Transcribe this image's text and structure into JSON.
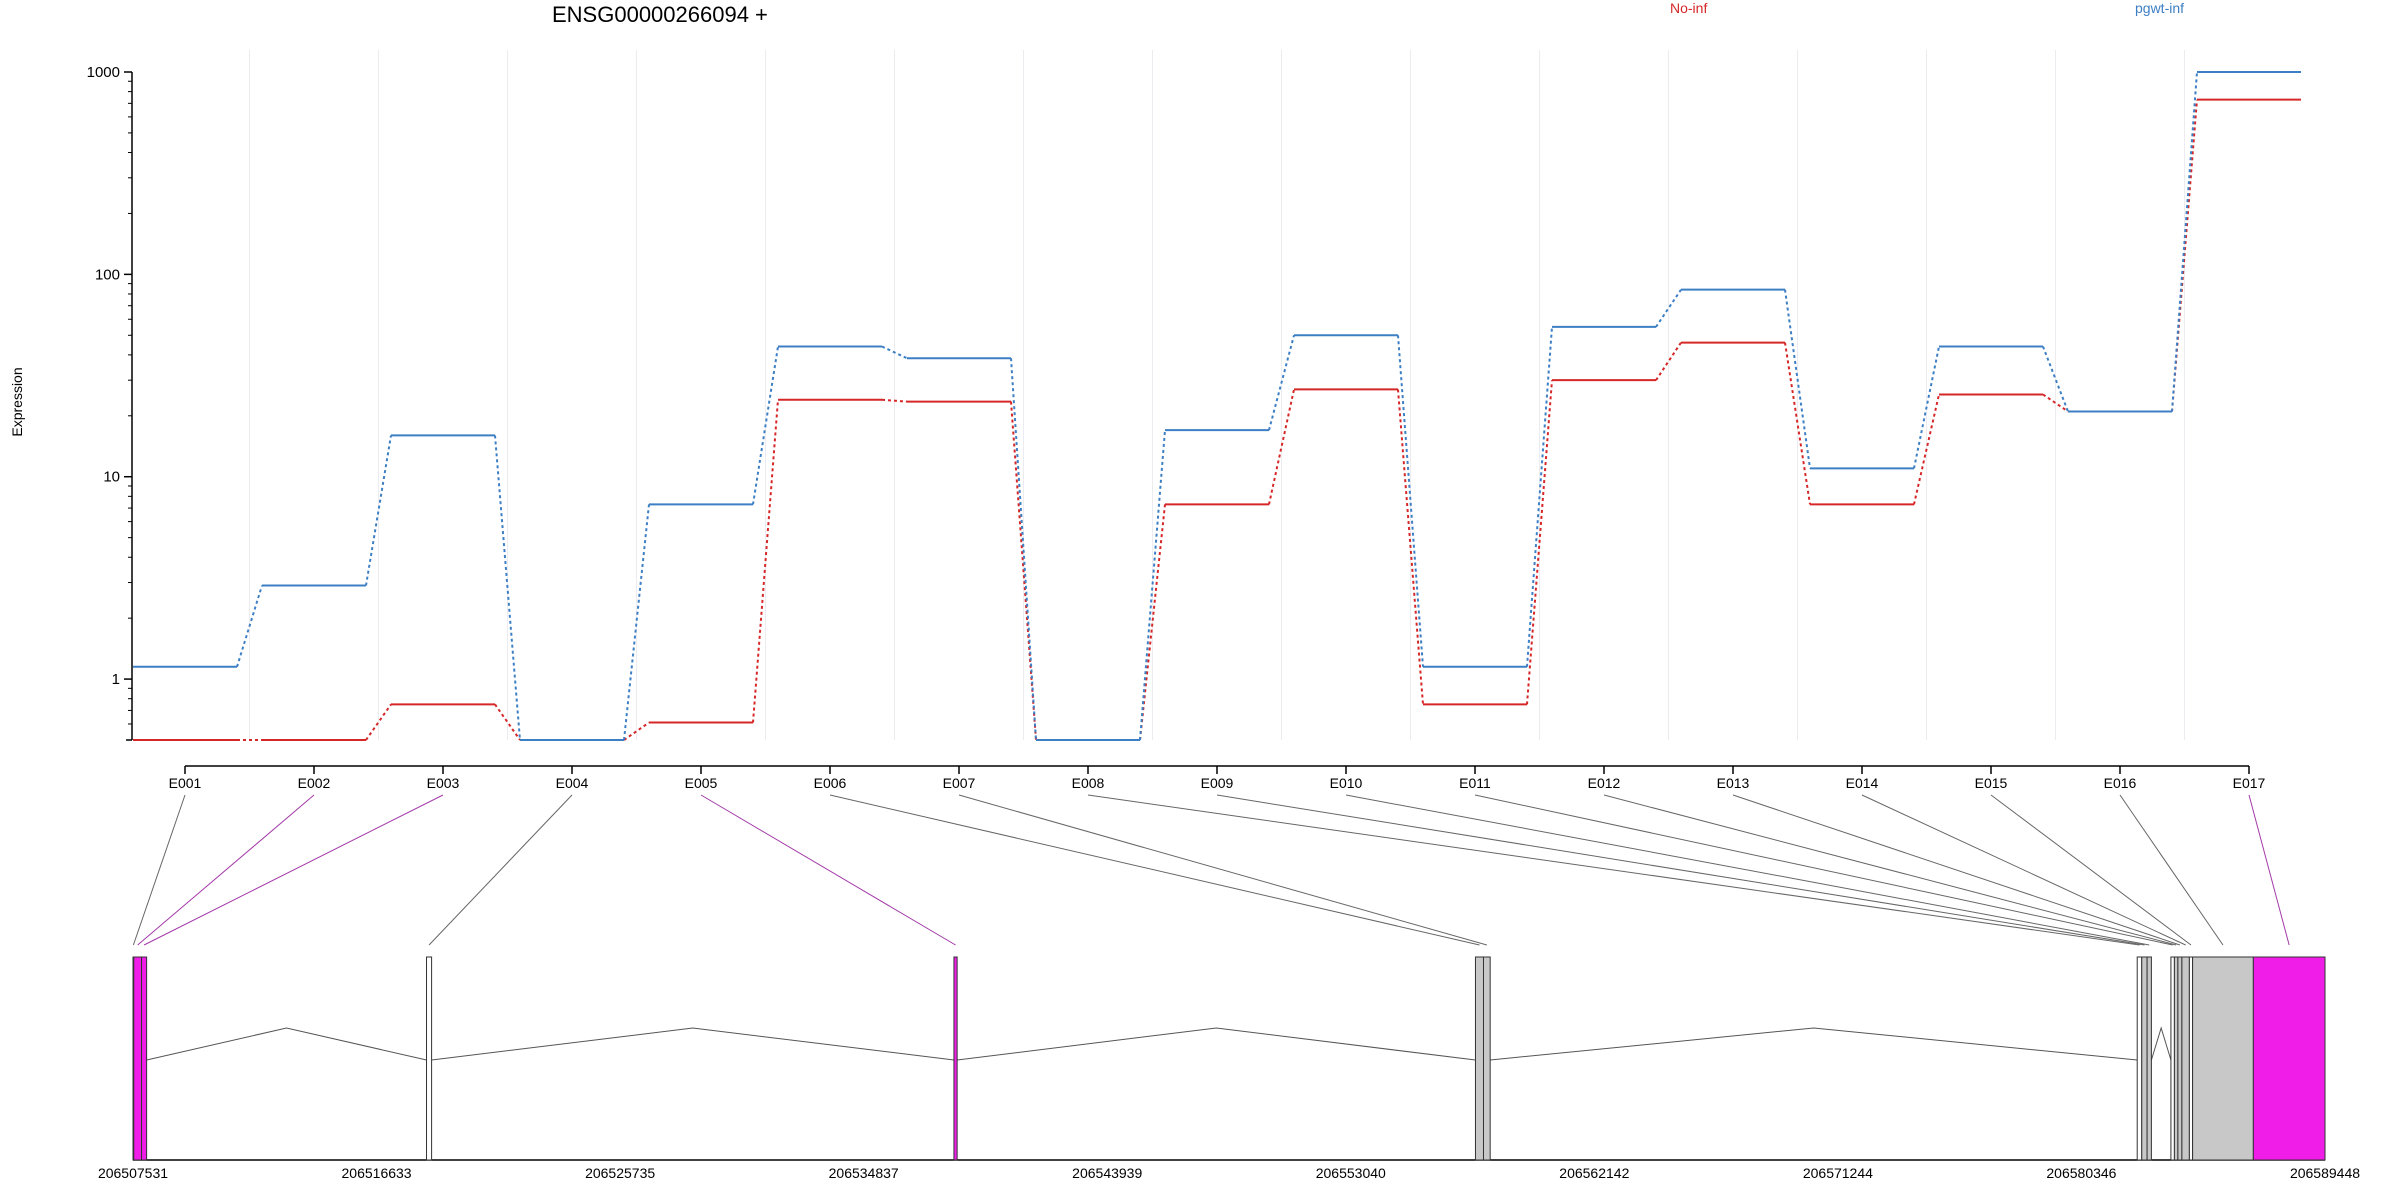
{
  "chart_data": {
    "type": "line",
    "title": "ENSG00000266094 +",
    "ylabel": "Expression",
    "yscale": "log",
    "y_ticks": [
      1,
      10,
      100,
      1000
    ],
    "y_tick_labels": [
      "1",
      "10",
      "100",
      "1000"
    ],
    "ylim": [
      0.5,
      1000
    ],
    "categories": [
      "E001",
      "E002",
      "E003",
      "E004",
      "E005",
      "E006",
      "E007",
      "E008",
      "E009",
      "E010",
      "E011",
      "E012",
      "E013",
      "E014",
      "E015",
      "E016",
      "E017"
    ],
    "series": [
      {
        "name": "No-inf",
        "color": "#d62728",
        "values": [
          0.5,
          0.5,
          0.75,
          0.5,
          0.61,
          24,
          23.5,
          0.5,
          7.3,
          27,
          0.75,
          30,
          46,
          7.3,
          25.5,
          21,
          730
        ]
      },
      {
        "name": "pgwt-inf",
        "color": "#3d7fc4",
        "values": [
          1.15,
          2.9,
          16,
          0.5,
          7.3,
          44,
          38.5,
          0.5,
          17,
          50,
          1.15,
          55,
          84,
          11,
          44,
          21,
          1000
        ]
      }
    ],
    "gene_model": {
      "coordinate_labels": [
        "206507531",
        "206516633",
        "206525735",
        "206534837",
        "206543939",
        "206553040",
        "206562142",
        "206571244",
        "206580346",
        "206589448"
      ],
      "coordinate_range": [
        206507531,
        206589448
      ],
      "highlight_color": "#f01ce8",
      "exon_color": "#c8c8c8",
      "exons": [
        {
          "label": "E001",
          "start": 206507531,
          "end": 206507560,
          "fill": "white"
        },
        {
          "label": "E002",
          "start": 206507560,
          "end": 206507850,
          "fill": "highlight"
        },
        {
          "label": "E003",
          "start": 206507850,
          "end": 206508040,
          "fill": "highlight"
        },
        {
          "label": "E004",
          "start": 206518500,
          "end": 206518690,
          "fill": "white"
        },
        {
          "label": "E005",
          "start": 206538210,
          "end": 206538330,
          "fill": "highlight"
        },
        {
          "label": "E006",
          "start": 206557700,
          "end": 206558000,
          "fill": "gray"
        },
        {
          "label": "E007",
          "start": 206558000,
          "end": 206558250,
          "fill": "gray"
        },
        {
          "label": "E008",
          "start": 206582430,
          "end": 206582600,
          "fill": "white"
        },
        {
          "label": "E009",
          "start": 206582600,
          "end": 206582800,
          "fill": "gray"
        },
        {
          "label": "E010",
          "start": 206582800,
          "end": 206582960,
          "fill": "gray"
        },
        {
          "label": "E011",
          "start": 206583690,
          "end": 206583820,
          "fill": "white"
        },
        {
          "label": "E012",
          "start": 206583820,
          "end": 206583950,
          "fill": "gray"
        },
        {
          "label": "E013",
          "start": 206583950,
          "end": 206584100,
          "fill": "gray"
        },
        {
          "label": "E014",
          "start": 206584100,
          "end": 206584380,
          "fill": "gray"
        },
        {
          "label": "E015",
          "start": 206584380,
          "end": 206584500,
          "fill": "white"
        },
        {
          "label": "E016",
          "start": 206584500,
          "end": 206586770,
          "fill": "gray"
        },
        {
          "label": "E017",
          "start": 206586770,
          "end": 206589448,
          "fill": "highlight"
        }
      ],
      "introns": [
        [
          206508040,
          206518500
        ],
        [
          206518690,
          206538210
        ],
        [
          206538330,
          206557700
        ],
        [
          206558250,
          206582430
        ],
        [
          206582960,
          206583690
        ]
      ]
    }
  }
}
